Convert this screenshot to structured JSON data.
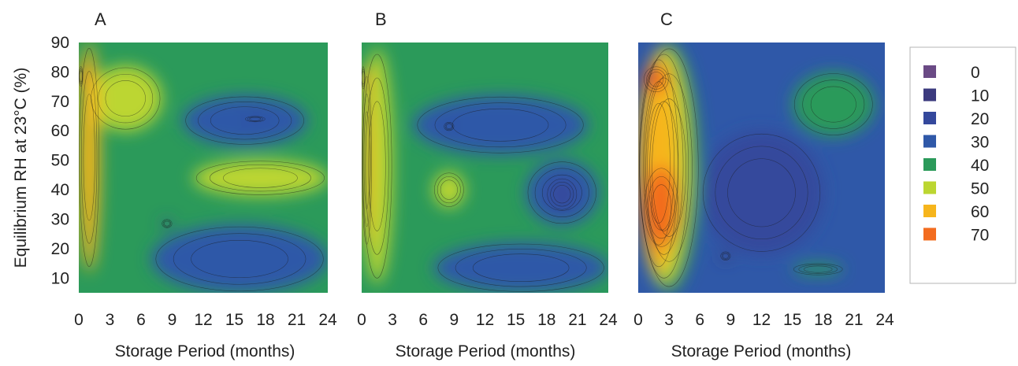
{
  "chart_data": {
    "type": "heatmap",
    "ylabel": "Equilibrium RH at 23°C (%)",
    "x_ticks": [
      0,
      3,
      6,
      9,
      12,
      15,
      18,
      21,
      24
    ],
    "y_ticks": [
      10,
      20,
      30,
      40,
      50,
      60,
      70,
      80,
      90
    ],
    "xlim": [
      0,
      24
    ],
    "ylim": [
      5,
      90
    ],
    "grid": false,
    "legend": {
      "placement": "right",
      "levels": [
        "0",
        "10",
        "20",
        "30",
        "40",
        "50",
        "60",
        "70"
      ],
      "colors": [
        "#6a4a85",
        "#3b3a7e",
        "#34489c",
        "#2f58a8",
        "#2b9a5a",
        "#bcd631",
        "#f6b51c",
        "#f36c1f"
      ]
    },
    "panels": [
      {
        "label": "A",
        "xlabel": "Storage Period (months)",
        "regions": [
          {
            "level": 40,
            "x": [
              0,
              24
            ],
            "y": [
              5,
              90
            ]
          },
          {
            "level": 30,
            "x": [
              7,
              24
            ],
            "y": [
              5,
              28
            ]
          },
          {
            "level": 20,
            "x": [
              8,
              9
            ],
            "y": [
              27,
              30
            ]
          },
          {
            "level": 30,
            "x": [
              10,
              22
            ],
            "y": [
              55,
              72
            ]
          },
          {
            "level": 20,
            "x": [
              16,
              18
            ],
            "y": [
              63,
              65
            ]
          },
          {
            "level": 50,
            "x": [
              11,
              24
            ],
            "y": [
              38,
              50
            ]
          },
          {
            "level": 50,
            "x": [
              1,
              8
            ],
            "y": [
              60,
              82
            ]
          },
          {
            "level": 60,
            "x": [
              0,
              2
            ],
            "y": [
              12,
              90
            ]
          },
          {
            "level": 70,
            "x": [
              0,
              0.4
            ],
            "y": [
              75,
              82
            ]
          }
        ]
      },
      {
        "label": "B",
        "xlabel": "Storage Period (months)",
        "regions": [
          {
            "level": 40,
            "x": [
              0,
              24
            ],
            "y": [
              5,
              90
            ]
          },
          {
            "level": 30,
            "x": [
              7,
              24
            ],
            "y": [
              5,
              22
            ]
          },
          {
            "level": 30,
            "x": [
              5,
              22
            ],
            "y": [
              52,
              72
            ]
          },
          {
            "level": 20,
            "x": [
              8,
              9
            ],
            "y": [
              60,
              63
            ]
          },
          {
            "level": 30,
            "x": [
              16,
              23
            ],
            "y": [
              28,
              50
            ]
          },
          {
            "level": 20,
            "x": [
              18,
              21
            ],
            "y": [
              33,
              44
            ]
          },
          {
            "level": 50,
            "x": [
              7,
              10
            ],
            "y": [
              34,
              46
            ]
          },
          {
            "level": 50,
            "x": [
              0,
              3
            ],
            "y": [
              8,
              88
            ]
          },
          {
            "level": 60,
            "x": [
              0,
              1
            ],
            "y": [
              20,
              80
            ]
          },
          {
            "level": 70,
            "x": [
              0,
              0.3
            ],
            "y": [
              74,
              82
            ]
          }
        ]
      },
      {
        "label": "C",
        "xlabel": "Storage Period (months)",
        "regions": [
          {
            "level": 30,
            "x": [
              0,
              24
            ],
            "y": [
              5,
              90
            ]
          },
          {
            "level": 20,
            "x": [
              6,
              18
            ],
            "y": [
              18,
              60
            ]
          },
          {
            "level": 10,
            "x": [
              8,
              9
            ],
            "y": [
              16,
              19
            ]
          },
          {
            "level": 40,
            "x": [
              15,
              23
            ],
            "y": [
              58,
              80
            ]
          },
          {
            "level": 40,
            "x": [
              15,
              20
            ],
            "y": [
              11,
              15
            ]
          },
          {
            "level": 40,
            "x": [
              0,
              6
            ],
            "y": [
              5,
              90
            ]
          },
          {
            "level": 50,
            "x": [
              0,
              5
            ],
            "y": [
              8,
              88
            ]
          },
          {
            "level": 60,
            "x": [
              0,
              4
            ],
            "y": [
              12,
              86
            ]
          },
          {
            "level": 70,
            "x": [
              0.5,
              3
            ],
            "y": [
              73,
              82
            ]
          },
          {
            "level": 70,
            "x": [
              0.5,
              4
            ],
            "y": [
              20,
              48
            ]
          }
        ]
      }
    ]
  }
}
